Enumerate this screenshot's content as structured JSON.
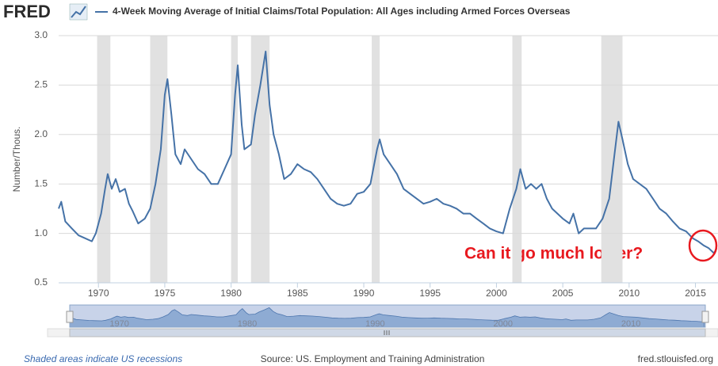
{
  "chart_data": {
    "type": "line",
    "logo": "FRED",
    "ylabel": "Number/Thous.",
    "annotation": "Can it go much lower?",
    "footer_left": "Shaded areas indicate US recessions",
    "source": "Source: US. Employment and Training Administration",
    "site": "fred.stlouisfed.org",
    "xlim": [
      1967,
      2016.7
    ],
    "ylim": [
      0.5,
      3.0
    ],
    "xticks": [
      1970,
      1975,
      1980,
      1985,
      1990,
      1995,
      2000,
      2005,
      2010,
      2015
    ],
    "yticks": [
      0.5,
      {
        "value": 1,
        "label": "1.0"
      },
      1.5,
      {
        "value": 2,
        "label": "2.0"
      },
      2.5,
      {
        "value": 3,
        "label": "3.0"
      }
    ],
    "grid": true,
    "recessions": [
      [
        1969.9,
        1970.9
      ],
      [
        1973.9,
        1975.2
      ],
      [
        1980.0,
        1980.5
      ],
      [
        1981.5,
        1982.9
      ],
      [
        1990.6,
        1991.2
      ],
      [
        2001.2,
        2001.9
      ],
      [
        2007.9,
        2009.5
      ]
    ],
    "navigator_xticks": [
      1970,
      1980,
      1990,
      2000,
      2010
    ],
    "x": [
      1967.0,
      1967.2,
      1967.5,
      1968.0,
      1968.5,
      1969.0,
      1969.5,
      1969.8,
      1970.2,
      1970.5,
      1970.7,
      1971.0,
      1971.3,
      1971.6,
      1972.0,
      1972.3,
      1972.6,
      1973.0,
      1973.5,
      1973.9,
      1974.3,
      1974.7,
      1975.0,
      1975.2,
      1975.5,
      1975.8,
      1976.2,
      1976.5,
      1977.0,
      1977.5,
      1978.0,
      1978.5,
      1979.0,
      1979.5,
      1980.0,
      1980.3,
      1980.5,
      1980.8,
      1981.0,
      1981.5,
      1981.8,
      1982.2,
      1982.6,
      1982.9,
      1983.2,
      1983.6,
      1984.0,
      1984.5,
      1985.0,
      1985.5,
      1986.0,
      1986.5,
      1987.0,
      1987.5,
      1988.0,
      1988.5,
      1989.0,
      1989.5,
      1990.0,
      1990.5,
      1991.0,
      1991.2,
      1991.5,
      1992.0,
      1992.5,
      1993.0,
      1993.5,
      1994.0,
      1994.5,
      1995.0,
      1995.5,
      1996.0,
      1996.5,
      1997.0,
      1997.5,
      1998.0,
      1998.5,
      1999.0,
      1999.5,
      2000.0,
      2000.5,
      2001.0,
      2001.5,
      2001.8,
      2002.2,
      2002.6,
      2003.0,
      2003.4,
      2003.8,
      2004.2,
      2004.6,
      2005.0,
      2005.5,
      2005.8,
      2006.2,
      2006.6,
      2007.0,
      2007.5,
      2008.0,
      2008.5,
      2008.9,
      2009.2,
      2009.5,
      2009.9,
      2010.3,
      2010.8,
      2011.3,
      2011.8,
      2012.3,
      2012.8,
      2013.3,
      2013.8,
      2014.3,
      2014.8,
      2015.2,
      2015.6,
      2016.0,
      2016.4,
      2016.6
    ],
    "series": [
      {
        "name": "4-Week Moving Average of Initial Claims/Total Population: All Ages including Armed Forces Overseas",
        "color": "#4572a7",
        "values": [
          1.25,
          1.32,
          1.12,
          1.05,
          0.98,
          0.95,
          0.92,
          1.0,
          1.2,
          1.45,
          1.6,
          1.45,
          1.55,
          1.42,
          1.45,
          1.3,
          1.22,
          1.1,
          1.15,
          1.25,
          1.5,
          1.85,
          2.4,
          2.56,
          2.2,
          1.8,
          1.7,
          1.85,
          1.75,
          1.65,
          1.6,
          1.5,
          1.5,
          1.65,
          1.8,
          2.4,
          2.7,
          2.1,
          1.85,
          1.9,
          2.2,
          2.5,
          2.84,
          2.3,
          2.0,
          1.8,
          1.55,
          1.6,
          1.7,
          1.65,
          1.62,
          1.55,
          1.45,
          1.35,
          1.3,
          1.28,
          1.3,
          1.4,
          1.42,
          1.5,
          1.85,
          1.95,
          1.8,
          1.7,
          1.6,
          1.45,
          1.4,
          1.35,
          1.3,
          1.32,
          1.35,
          1.3,
          1.28,
          1.25,
          1.2,
          1.2,
          1.15,
          1.1,
          1.05,
          1.02,
          1.0,
          1.25,
          1.45,
          1.65,
          1.45,
          1.5,
          1.45,
          1.5,
          1.35,
          1.25,
          1.2,
          1.15,
          1.1,
          1.2,
          1.0,
          1.05,
          1.05,
          1.05,
          1.15,
          1.35,
          1.8,
          2.13,
          1.95,
          1.7,
          1.55,
          1.5,
          1.45,
          1.35,
          1.25,
          1.2,
          1.12,
          1.05,
          1.02,
          0.95,
          0.92,
          0.88,
          0.85,
          0.8,
          0.85
        ]
      }
    ]
  }
}
